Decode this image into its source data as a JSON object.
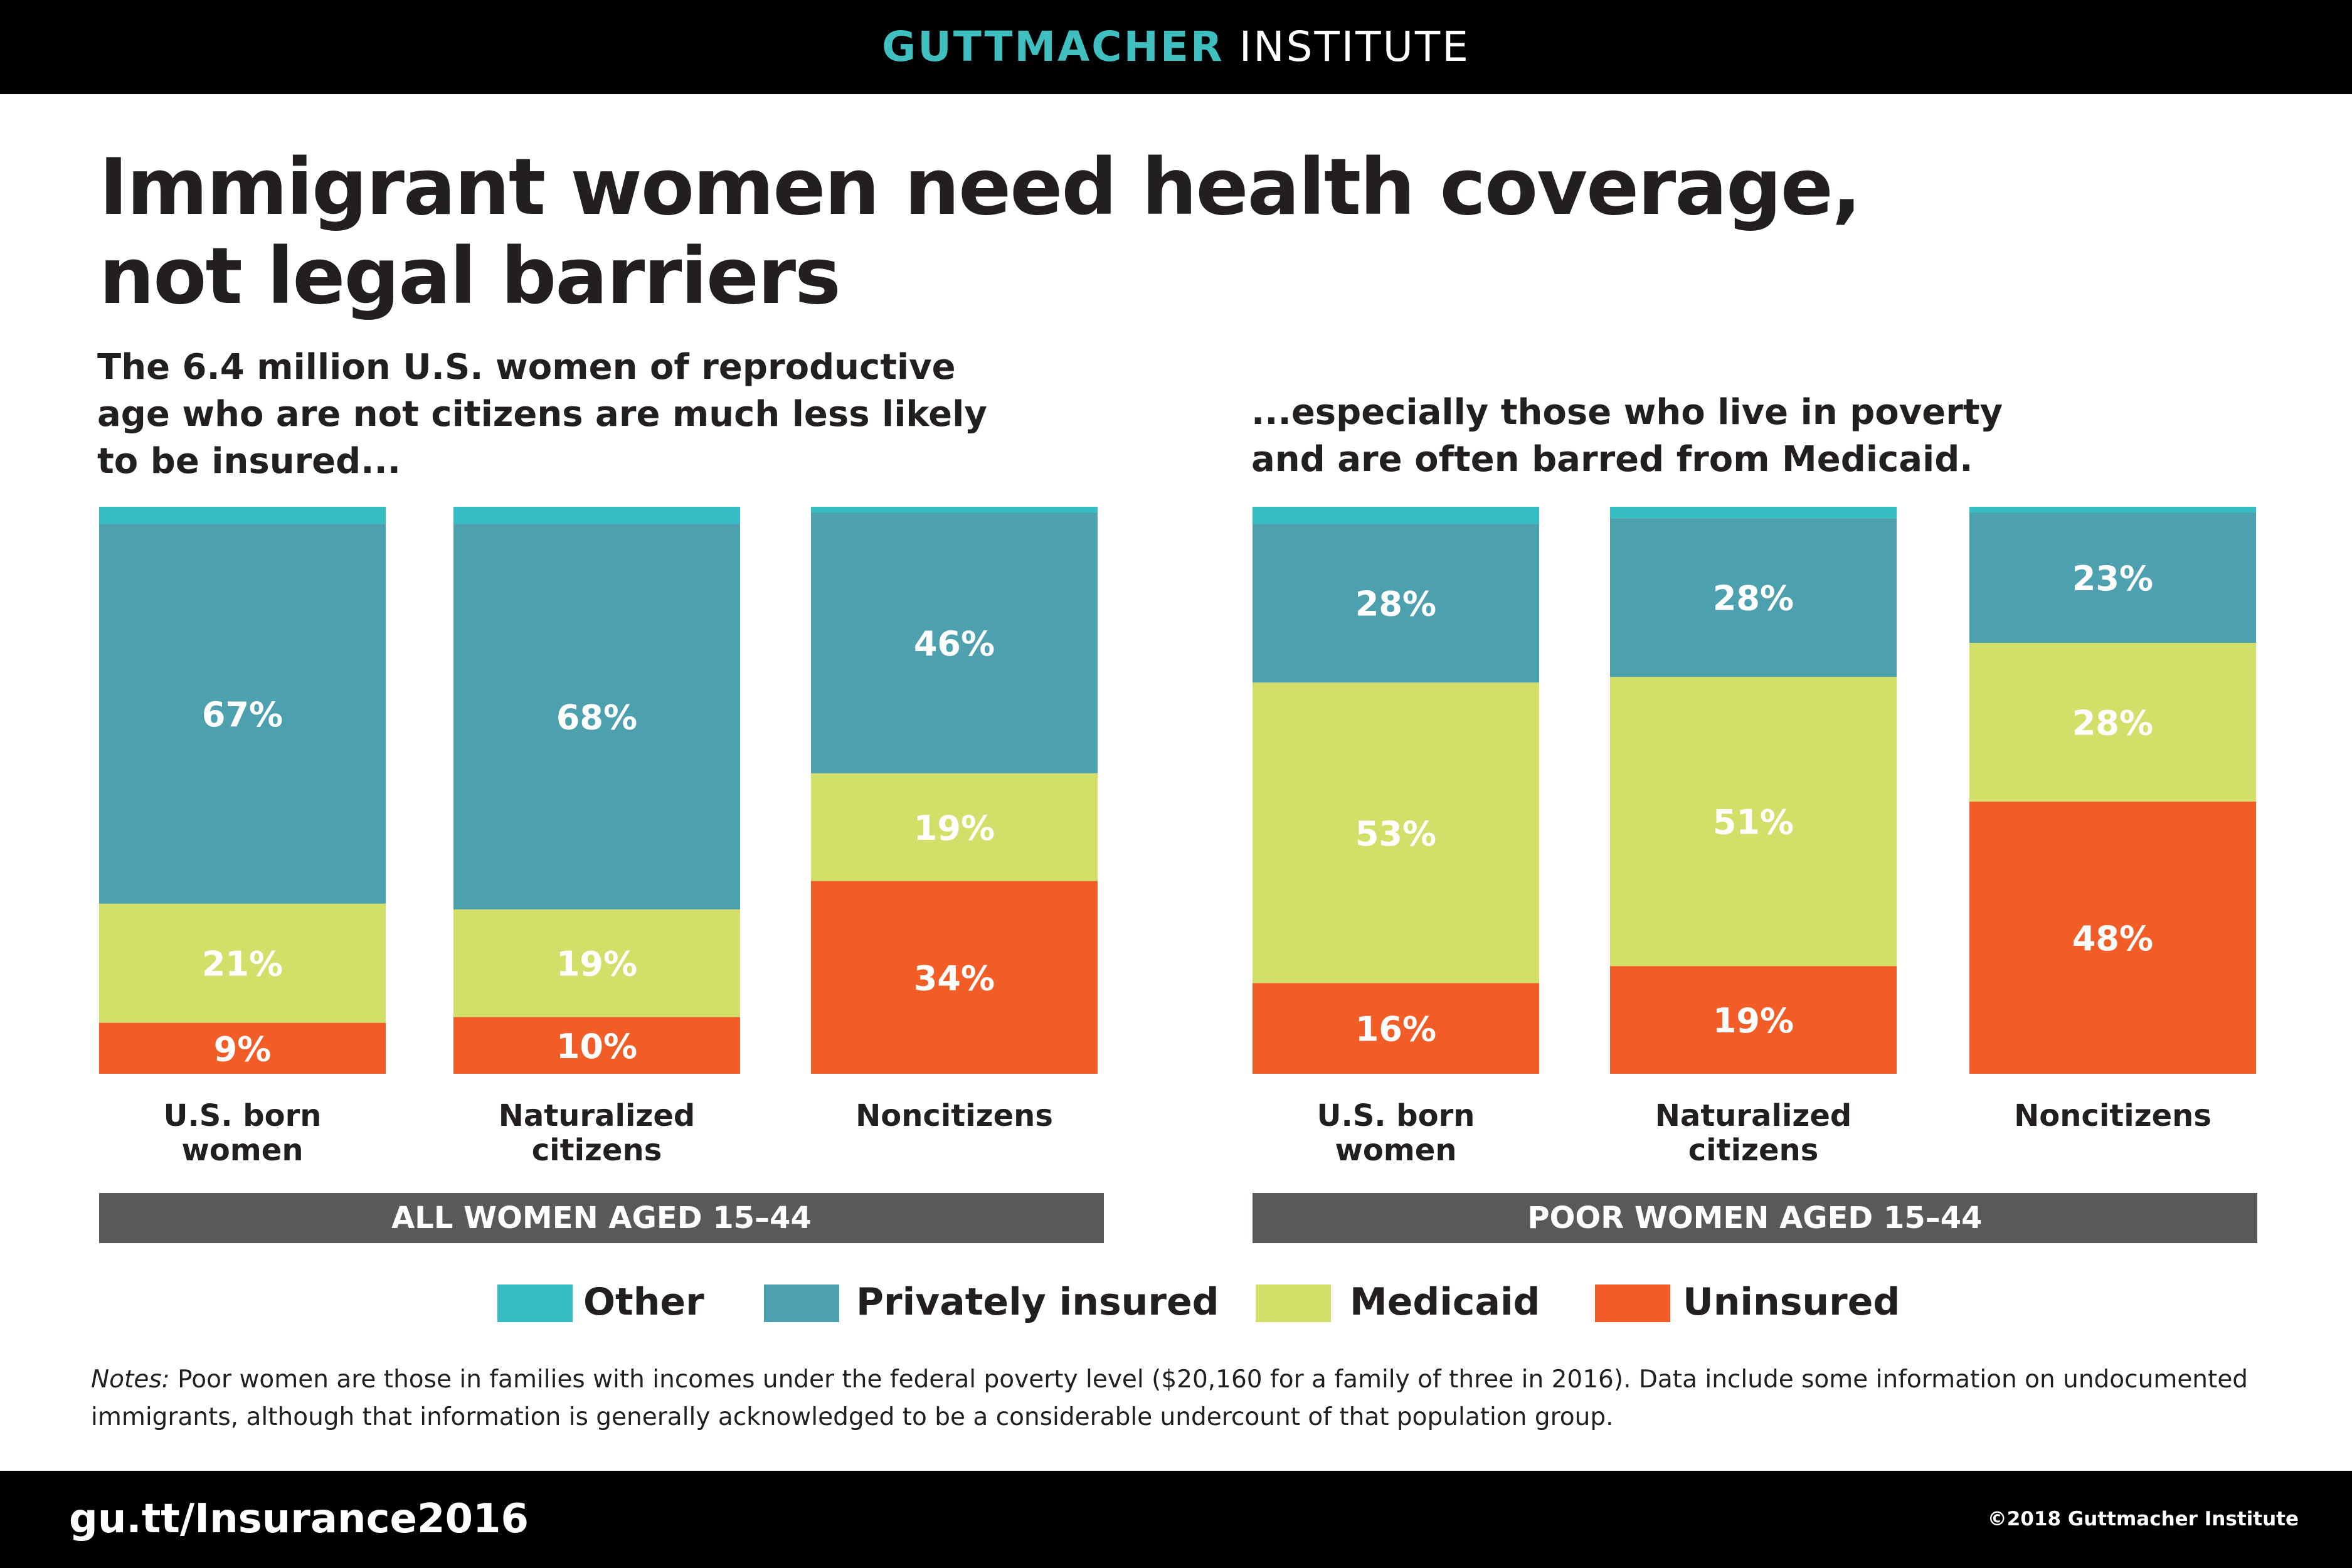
{
  "header": {
    "brand_bold": "GUTTMACHER",
    "brand_light": "INSTITUTE"
  },
  "title_lines": [
    "Immigrant women need health coverage,",
    "not legal barriers"
  ],
  "subtitle_left_lines": [
    "The 6.4 million U.S. women of reproductive",
    "age who are not citizens are much less likely",
    "to be insured..."
  ],
  "subtitle_right_lines": [
    "...especially those who live in poverty",
    "and are often barred from Medicaid."
  ],
  "colors": {
    "Other": "#35bfc4",
    "Privately insured": "#4da0ad",
    "Medicaid": "#d2e06a",
    "Uninsured": "#f25c27",
    "group_bar": "#58595b"
  },
  "chart_data": [
    {
      "type": "bar",
      "stacked": true,
      "group_label": "ALL WOMEN AGED 15–44",
      "categories": [
        [
          "U.S. born",
          "women"
        ],
        [
          "Naturalized",
          "citizens"
        ],
        [
          "Noncitizens"
        ]
      ],
      "series": [
        {
          "name": "Uninsured",
          "values": [
            9,
            10,
            34
          ],
          "labels": [
            "9%",
            "10%",
            "34%"
          ]
        },
        {
          "name": "Medicaid",
          "values": [
            21,
            19,
            19
          ],
          "labels": [
            "21%",
            "19%",
            "19%"
          ]
        },
        {
          "name": "Privately insured",
          "values": [
            67,
            68,
            46
          ],
          "labels": [
            "67%",
            "68%",
            "46%"
          ]
        },
        {
          "name": "Other",
          "values": [
            3,
            3,
            1
          ],
          "labels": [
            "",
            "",
            ""
          ]
        }
      ],
      "ylim": [
        0,
        100
      ]
    },
    {
      "type": "bar",
      "stacked": true,
      "group_label": "POOR WOMEN AGED 15–44",
      "categories": [
        [
          "U.S. born",
          "women"
        ],
        [
          "Naturalized",
          "citizens"
        ],
        [
          "Noncitizens"
        ]
      ],
      "series": [
        {
          "name": "Uninsured",
          "values": [
            16,
            19,
            48
          ],
          "labels": [
            "16%",
            "19%",
            "48%"
          ]
        },
        {
          "name": "Medicaid",
          "values": [
            53,
            51,
            28
          ],
          "labels": [
            "53%",
            "51%",
            "28%"
          ]
        },
        {
          "name": "Privately insured",
          "values": [
            28,
            28,
            23
          ],
          "labels": [
            "28%",
            "28%",
            "23%"
          ]
        },
        {
          "name": "Other",
          "values": [
            3,
            2,
            1
          ],
          "labels": [
            "",
            "",
            ""
          ]
        }
      ],
      "ylim": [
        0,
        100
      ]
    }
  ],
  "legend": [
    "Other",
    "Privately insured",
    "Medicaid",
    "Uninsured"
  ],
  "notes": {
    "label": "Notes:",
    "text": " Poor women are those in families with incomes under the federal poverty level ($20,160 for a family of three in 2016). Data include some information on undocumented immigrants, although that information is generally acknowledged to be a considerable undercount of that population group."
  },
  "footer": {
    "url": "gu.tt/Insurance2016",
    "copyright": "©2018 Guttmacher Institute"
  }
}
